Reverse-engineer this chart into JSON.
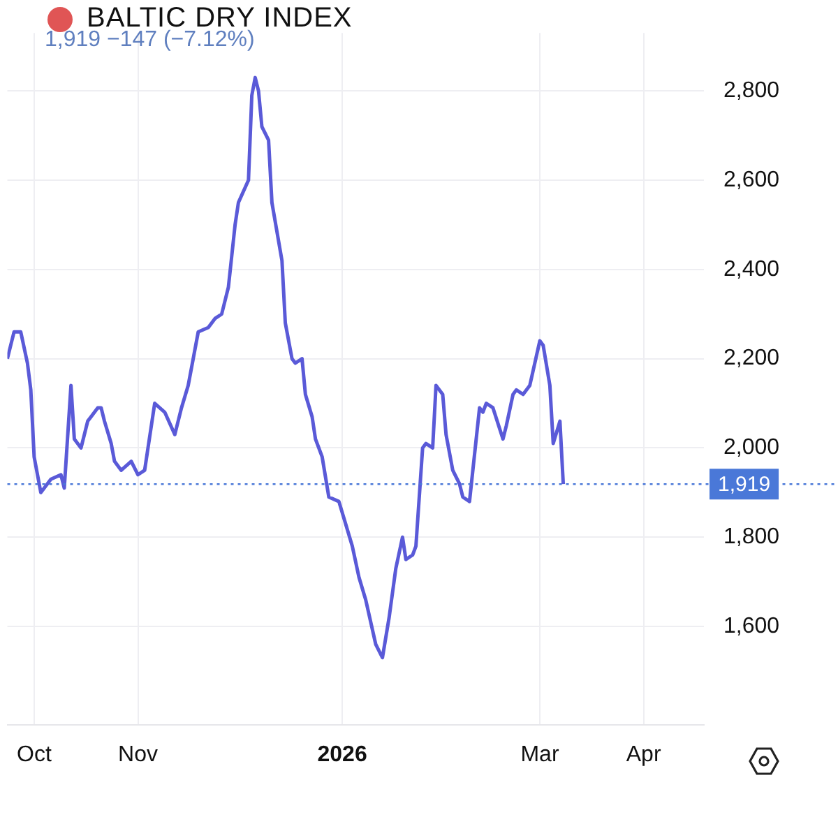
{
  "chart_data": {
    "type": "line",
    "title": "BALTIC DRY INDEX",
    "subtitle": "1,919 −147 (−7.12%)",
    "x": [
      "2025-09-23",
      "2025-09-25",
      "2025-09-27",
      "2025-09-29",
      "2025-09-30",
      "2025-10-01",
      "2025-10-03",
      "2025-10-06",
      "2025-10-09",
      "2025-10-10",
      "2025-10-12",
      "2025-10-13",
      "2025-10-15",
      "2025-10-17",
      "2025-10-18",
      "2025-10-20",
      "2025-10-21",
      "2025-10-22",
      "2025-10-24",
      "2025-10-25",
      "2025-10-27",
      "2025-10-30",
      "2025-11-01",
      "2025-11-03",
      "2025-11-06",
      "2025-11-09",
      "2025-11-12",
      "2025-11-14",
      "2025-11-16",
      "2025-11-19",
      "2025-11-22",
      "2025-11-24",
      "2025-11-26",
      "2025-11-28",
      "2025-11-30",
      "2025-12-01",
      "2025-12-04",
      "2025-12-05",
      "2025-12-06",
      "2025-12-07",
      "2025-12-08",
      "2025-12-10",
      "2025-12-11",
      "2025-12-14",
      "2025-12-15",
      "2025-12-17",
      "2025-12-18",
      "2025-12-20",
      "2025-12-21",
      "2025-12-23",
      "2025-12-24",
      "2025-12-26",
      "2025-12-28",
      "2025-12-31",
      "2026-01-02",
      "2026-01-04",
      "2026-01-06",
      "2026-01-08",
      "2026-01-11",
      "2026-01-13",
      "2026-01-15",
      "2026-01-17",
      "2026-01-19",
      "2026-01-20",
      "2026-01-22",
      "2026-01-23",
      "2026-01-25",
      "2026-01-26",
      "2026-01-28",
      "2026-01-29",
      "2026-01-31",
      "2026-02-01",
      "2026-02-03",
      "2026-02-05",
      "2026-02-06",
      "2026-02-08",
      "2026-02-11",
      "2026-02-12",
      "2026-02-13",
      "2026-02-15",
      "2026-02-18",
      "2026-02-19",
      "2026-02-21",
      "2026-02-22",
      "2026-02-24",
      "2026-02-26",
      "2026-03-01",
      "2026-03-02",
      "2026-03-04",
      "2026-03-05",
      "2026-03-07",
      "2026-03-08"
    ],
    "series": [
      {
        "color": "#5a5ad8",
        "values": [
          2200,
          2260,
          2260,
          2190,
          2130,
          1980,
          1900,
          1930,
          1940,
          1910,
          2140,
          2020,
          2000,
          2060,
          2070,
          2090,
          2090,
          2060,
          2010,
          1970,
          1950,
          1970,
          1940,
          1950,
          2100,
          2080,
          2030,
          2090,
          2140,
          2260,
          2270,
          2290,
          2300,
          2360,
          2500,
          2550,
          2600,
          2790,
          2830,
          2800,
          2720,
          2690,
          2550,
          2420,
          2280,
          2200,
          2190,
          2200,
          2120,
          2070,
          2020,
          1980,
          1890,
          1880,
          1830,
          1780,
          1710,
          1660,
          1560,
          1530,
          1620,
          1730,
          1800,
          1750,
          1760,
          1780,
          2000,
          2010,
          2000,
          2140,
          2120,
          2030,
          1950,
          1920,
          1890,
          1880,
          2090,
          2080,
          2100,
          2090,
          2020,
          2050,
          2120,
          2130,
          2120,
          2140,
          2240,
          2230,
          2140,
          2010,
          2060,
          1919
        ]
      }
    ],
    "xlim": [
      "2025-09-23",
      "2026-04-19"
    ],
    "xticks": [
      {
        "value": "2025-10-01",
        "label": "Oct"
      },
      {
        "value": "2025-11-01",
        "label": "Nov"
      },
      {
        "value": "2026-01-01",
        "label": "2026"
      },
      {
        "value": "2026-03-01",
        "label": "Mar"
      },
      {
        "value": "2026-04-01",
        "label": "Apr"
      }
    ],
    "ylim": [
      1380,
      2930
    ],
    "yticks": [
      {
        "value": 1600,
        "label": "1,600"
      },
      {
        "value": 1800,
        "label": "1,800"
      },
      {
        "value": 2000,
        "label": "2,000"
      },
      {
        "value": 2200,
        "label": "2,200"
      },
      {
        "value": 2400,
        "label": "2,400"
      },
      {
        "value": 2600,
        "label": "2,600"
      },
      {
        "value": 2800,
        "label": "2,800"
      }
    ],
    "ref_lines": [
      {
        "axis": "y",
        "value": 1919,
        "label": "1,919",
        "color": "#4a78d8",
        "line_style": "dotted"
      }
    ],
    "grid": true,
    "legend": false
  }
}
